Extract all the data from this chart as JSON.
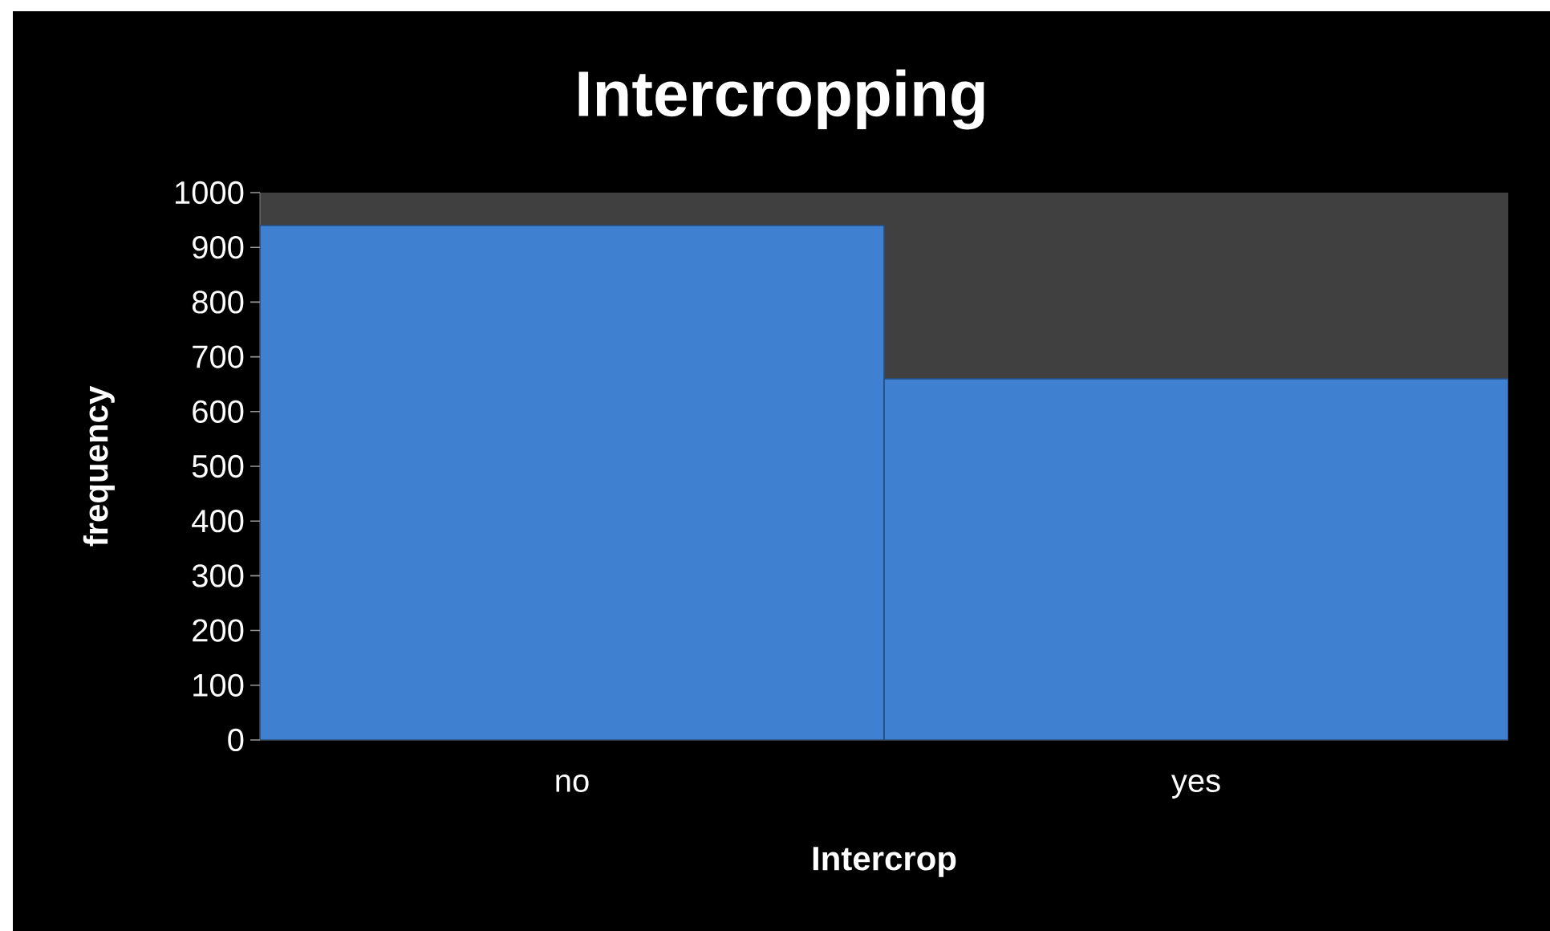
{
  "chart_data": {
    "type": "bar",
    "title": "Intercropping",
    "xlabel": "Intercrop",
    "ylabel": "frequency",
    "categories": [
      "no",
      "yes"
    ],
    "values": [
      940,
      660
    ],
    "color": "#4080d0",
    "ylim": [
      0,
      1000
    ],
    "yticks": [
      0,
      100,
      200,
      300,
      400,
      500,
      600,
      700,
      800,
      900,
      1000
    ]
  }
}
